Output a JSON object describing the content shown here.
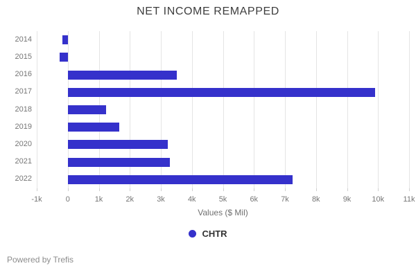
{
  "footer": {
    "text": "Powered by Trefis"
  },
  "chart_data": {
    "type": "bar",
    "orientation": "horizontal",
    "title": "NET INCOME REMAPPED",
    "xlabel": "Values ($ Mil)",
    "categories": [
      "2014",
      "2015",
      "2016",
      "2017",
      "2018",
      "2019",
      "2020",
      "2021",
      "2022"
    ],
    "series": [
      {
        "name": "CHTR",
        "color": "#3531cb",
        "values": [
          -183,
          -271,
          3522,
          9895,
          1230,
          1668,
          3222,
          3300,
          7250
        ]
      }
    ],
    "xlim": [
      -1000,
      11000
    ],
    "x_tick_values": [
      -1000,
      0,
      1000,
      2000,
      3000,
      4000,
      5000,
      6000,
      7000,
      8000,
      9000,
      10000,
      11000
    ],
    "x_tick_labels": [
      "-1k",
      "0",
      "1k",
      "2k",
      "3k",
      "4k",
      "5k",
      "6k",
      "7k",
      "8k",
      "9k",
      "10k",
      "11k"
    ],
    "grid": true,
    "legend_position": "bottom"
  }
}
